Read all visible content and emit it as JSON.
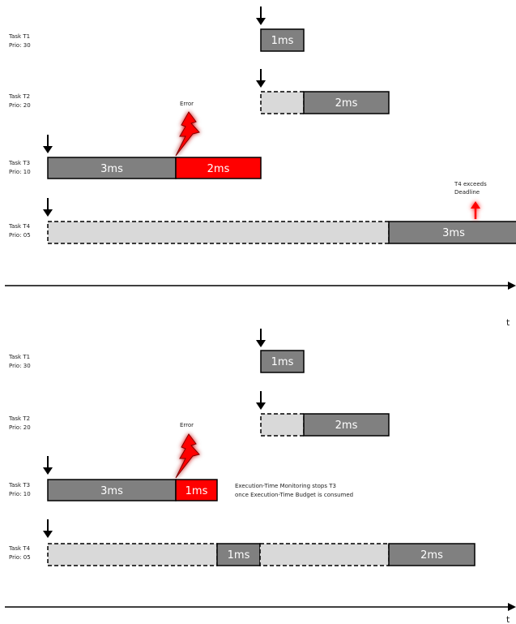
{
  "colors": {
    "running": "#808080",
    "waiting": "#d9d9d9",
    "error": "#ff0000",
    "monitor": "#1e90ff",
    "deadline_arrow": "#ff0000",
    "axis": "#000000"
  },
  "scenario_top": {
    "tasks": [
      {
        "name": "Task T1",
        "prio": "Prio: 30"
      },
      {
        "name": "Task T2",
        "prio": "Prio: 20"
      },
      {
        "name": "Task T3",
        "prio": "Prio: 10"
      },
      {
        "name": "Task T4",
        "prio": "Prio: 05"
      }
    ],
    "bars": [
      {
        "task": 0,
        "type": "running",
        "label": "1ms"
      },
      {
        "task": 1,
        "type": "waiting",
        "label": ""
      },
      {
        "task": 1,
        "type": "running",
        "label": "2ms"
      },
      {
        "task": 2,
        "type": "running",
        "label": "3ms"
      },
      {
        "task": 2,
        "type": "error",
        "label": "2ms"
      },
      {
        "task": 3,
        "type": "waiting",
        "label": ""
      },
      {
        "task": 3,
        "type": "running",
        "label": "3ms"
      }
    ],
    "error_label": "Error",
    "deadline_note_line1": "T4 exceeds",
    "deadline_note_line2": "Deadline",
    "axis_label": "t"
  },
  "scenario_bottom": {
    "tasks": [
      {
        "name": "Task T1",
        "prio": "Prio: 30"
      },
      {
        "name": "Task T2",
        "prio": "Prio: 20"
      },
      {
        "name": "Task T3",
        "prio": "Prio: 10"
      },
      {
        "name": "Task T4",
        "prio": "Prio: 05"
      }
    ],
    "bars": [
      {
        "task": 0,
        "type": "running",
        "label": "1ms"
      },
      {
        "task": 1,
        "type": "waiting",
        "label": ""
      },
      {
        "task": 1,
        "type": "running",
        "label": "2ms"
      },
      {
        "task": 2,
        "type": "running",
        "label": "3ms"
      },
      {
        "task": 2,
        "type": "error",
        "label": "1ms"
      },
      {
        "task": 3,
        "type": "waiting",
        "label": ""
      },
      {
        "task": 3,
        "type": "running",
        "label": "1ms"
      },
      {
        "task": 3,
        "type": "waiting",
        "label": ""
      },
      {
        "task": 3,
        "type": "running",
        "label": "2ms"
      }
    ],
    "error_label": "Error",
    "monitor_note_line1": "Execution-Time Monitoring stops T3",
    "monitor_note_line2": "once Execution-Time Budget is consumed",
    "axis_label": "t"
  }
}
